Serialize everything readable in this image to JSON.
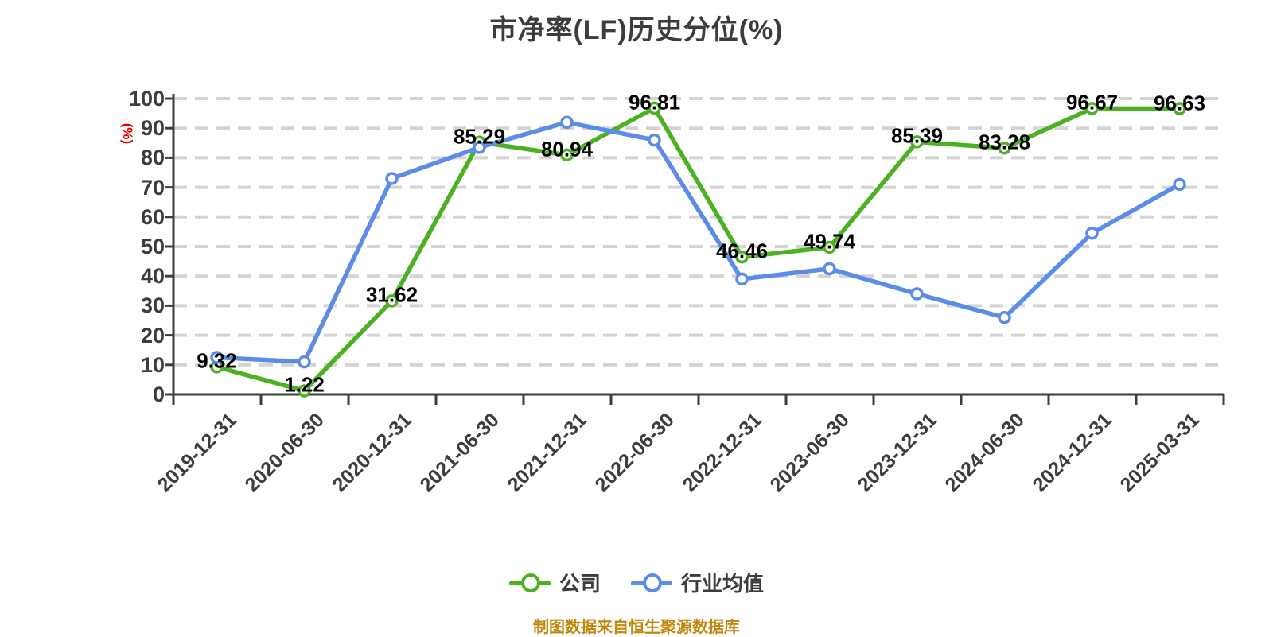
{
  "title": "市净率(LF)历史分位(%)",
  "y_axis_name": "(%)",
  "footer_note": "制图数据来自恒生聚源数据库",
  "legend": {
    "items": [
      {
        "label": "公司",
        "color": "#4cb122"
      },
      {
        "label": "行业均值",
        "color": "#5b8ce8"
      }
    ]
  },
  "colors": {
    "company_line": "#4cb122",
    "industry_line": "#5b8ce8",
    "axis": "#3c3c3c",
    "grid": "#d4d4d4",
    "data_label": "#000000",
    "y_axis_name": "#e60000",
    "footer": "#c0860d",
    "marker_fill": "#ffffff"
  },
  "chart_data": {
    "type": "line",
    "title": "市净率(LF)历史分位(%)",
    "ylabel": "(%)",
    "categories": [
      "2019-12-31",
      "2020-06-30",
      "2020-12-31",
      "2021-06-30",
      "2021-12-31",
      "2022-06-30",
      "2022-12-31",
      "2023-06-30",
      "2023-12-31",
      "2024-06-30",
      "2024-12-31",
      "2025-03-31"
    ],
    "series": [
      {
        "name": "公司",
        "color": "#4cb122",
        "show_labels": true,
        "values": [
          9.32,
          1.22,
          31.62,
          85.29,
          80.94,
          96.81,
          46.46,
          49.74,
          85.39,
          83.28,
          96.67,
          96.63
        ]
      },
      {
        "name": "行业均值",
        "color": "#5b8ce8",
        "show_labels": false,
        "values": [
          12.5,
          11,
          73,
          83.5,
          92,
          86,
          39,
          42.5,
          34,
          26,
          54.5,
          71
        ]
      }
    ],
    "ylim": [
      0,
      100
    ],
    "yticks": [
      0,
      10,
      20,
      30,
      40,
      50,
      60,
      70,
      80,
      90,
      100
    ],
    "grid": "horizontal-dashed",
    "legend_position": "bottom",
    "source_note": "制图数据来自恒生聚源数据库"
  }
}
